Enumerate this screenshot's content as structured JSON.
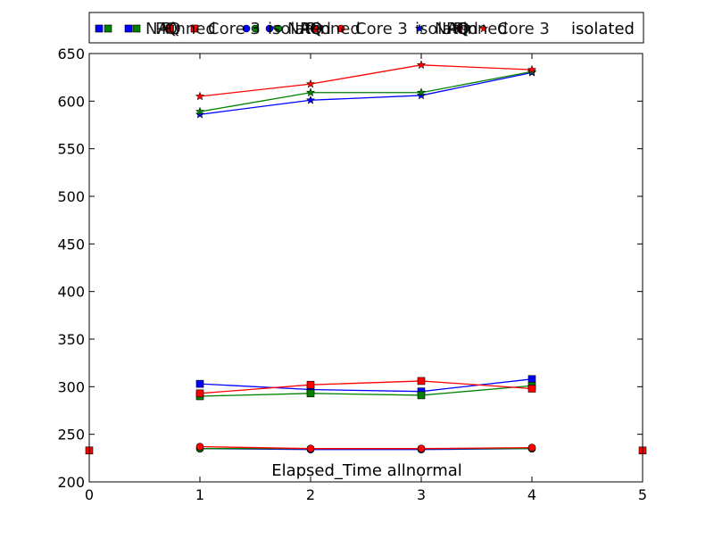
{
  "chart_data": {
    "type": "line",
    "title": "Elapsed_Time allnormal",
    "xlabel": "",
    "ylabel": "",
    "xlim": [
      0,
      5
    ],
    "ylim": [
      200,
      650
    ],
    "xticks": [
      0,
      1,
      2,
      3,
      4,
      5
    ],
    "yticks": [
      200,
      250,
      300,
      350,
      400,
      450,
      500,
      550,
      600,
      650
    ],
    "grid": false,
    "legend_placement": "top",
    "legend_text_overlapped": [
      "NAQ",
      "PQ",
      "Pinned",
      "Core 3",
      "isolated"
    ],
    "legend_text": "isolated",
    "edge_markers": [
      {
        "x": 0,
        "y": 233,
        "color": "#ff0000",
        "marker": "s"
      },
      {
        "x": 5,
        "y": 233,
        "color": "#ff0000",
        "marker": "s"
      }
    ],
    "series": [
      {
        "color": "#0000ff",
        "marker": "*",
        "x": [
          1,
          2,
          3,
          4
        ],
        "y": [
          586,
          601,
          606,
          630
        ]
      },
      {
        "color": "#008000",
        "marker": "*",
        "x": [
          1,
          2,
          3,
          4
        ],
        "y": [
          589,
          609,
          609,
          631
        ]
      },
      {
        "color": "#ff0000",
        "marker": "*",
        "x": [
          1,
          2,
          3,
          4
        ],
        "y": [
          605,
          618,
          638,
          633
        ]
      },
      {
        "color": "#0000ff",
        "marker": "s",
        "x": [
          1,
          2,
          3,
          4
        ],
        "y": [
          303,
          297,
          295,
          308
        ]
      },
      {
        "color": "#008000",
        "marker": "s",
        "x": [
          1,
          2,
          3,
          4
        ],
        "y": [
          290,
          293,
          291,
          301
        ]
      },
      {
        "color": "#ff0000",
        "marker": "s",
        "x": [
          1,
          2,
          3,
          4
        ],
        "y": [
          293,
          302,
          306,
          298
        ]
      },
      {
        "color": "#0000ff",
        "marker": "o",
        "x": [
          1,
          2,
          3,
          4
        ],
        "y": [
          235,
          234,
          234,
          235
        ]
      },
      {
        "color": "#008000",
        "marker": "o",
        "x": [
          1,
          2,
          3,
          4
        ],
        "y": [
          235,
          235,
          235,
          235
        ]
      },
      {
        "color": "#ff0000",
        "marker": "o",
        "x": [
          1,
          2,
          3,
          4
        ],
        "y": [
          237,
          235,
          235,
          236
        ]
      }
    ],
    "legend_entries": [
      {
        "color": "#0000ff",
        "marker": "s"
      },
      {
        "color": "#008000",
        "marker": "s"
      },
      {
        "color": "#ff0000",
        "marker": "s"
      },
      {
        "color": "#0000ff",
        "marker": "o"
      },
      {
        "color": "#008000",
        "marker": "o"
      },
      {
        "color": "#ff0000",
        "marker": "o"
      },
      {
        "color": "#0000ff",
        "marker": "*"
      },
      {
        "color": "#008000",
        "marker": "*"
      },
      {
        "color": "#ff0000",
        "marker": "*"
      }
    ]
  }
}
